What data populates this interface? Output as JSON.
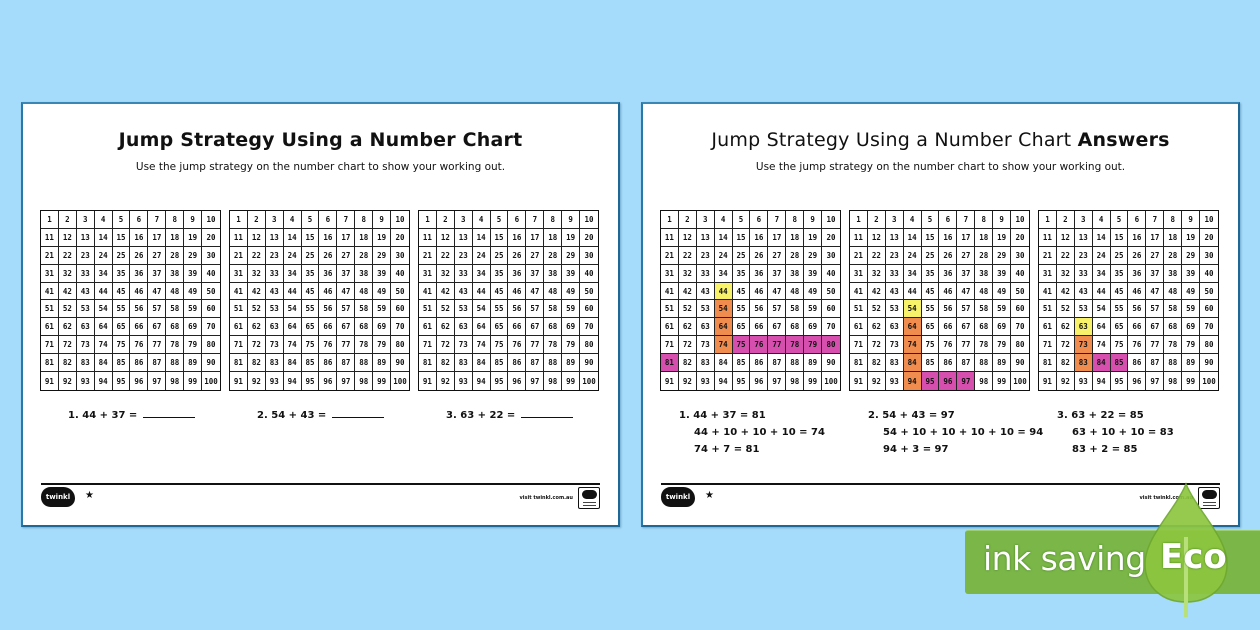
{
  "worksheet": {
    "title": "Jump Strategy Using a Number Chart",
    "subtitle": "Use the jump strategy on the number chart to show your working out.",
    "questions": [
      {
        "number": "1.",
        "expr": "44 + 37 ="
      },
      {
        "number": "2.",
        "expr": "54 + 43 ="
      },
      {
        "number": "3.",
        "expr": "63 + 22 ="
      }
    ],
    "footer": {
      "logo": "twinkl",
      "star": "★",
      "visit": "visit twinkl.com.au"
    }
  },
  "answers": {
    "title_main": "Jump Strategy Using a Number Chart",
    "title_bold": "Answers",
    "subtitle": "Use the jump strategy on the number chart to show your working out.",
    "questions": [
      {
        "number": "1.",
        "answer": "44 + 37 = 81",
        "step1": "44 + 10 + 10 + 10 = 74",
        "step2": "74 + 7 = 81",
        "highlight": {
          "start": [
            44
          ],
          "tens": [
            54,
            64,
            74
          ],
          "ones": [
            75,
            76,
            77,
            78,
            79,
            80,
            81
          ]
        }
      },
      {
        "number": "2.",
        "answer": "54 + 43 = 97",
        "step1": "54 + 10 + 10 + 10 + 10 = 94",
        "step2": "94 + 3 = 97",
        "highlight": {
          "start": [
            54
          ],
          "tens": [
            64,
            74,
            84,
            94
          ],
          "ones": [
            95,
            96,
            97
          ]
        }
      },
      {
        "number": "3.",
        "answer": "63 + 22 = 85",
        "step1": "63 + 10 + 10 = 83",
        "step2": "83 + 2 = 85",
        "highlight": {
          "start": [
            63
          ],
          "tens": [
            73,
            83
          ],
          "ones": [
            84,
            85
          ]
        }
      }
    ],
    "footer": {
      "logo": "twinkl",
      "star": "★",
      "visit": "visit twinkl.com.au"
    }
  },
  "eco_banner": {
    "text": "ink saving",
    "label": "Eco"
  },
  "colors": {
    "background": "#a6dcfb",
    "start": "#f8f16a",
    "tens": "#f08c4e",
    "ones": "#d64fae",
    "eco_green": "#7ab648"
  }
}
